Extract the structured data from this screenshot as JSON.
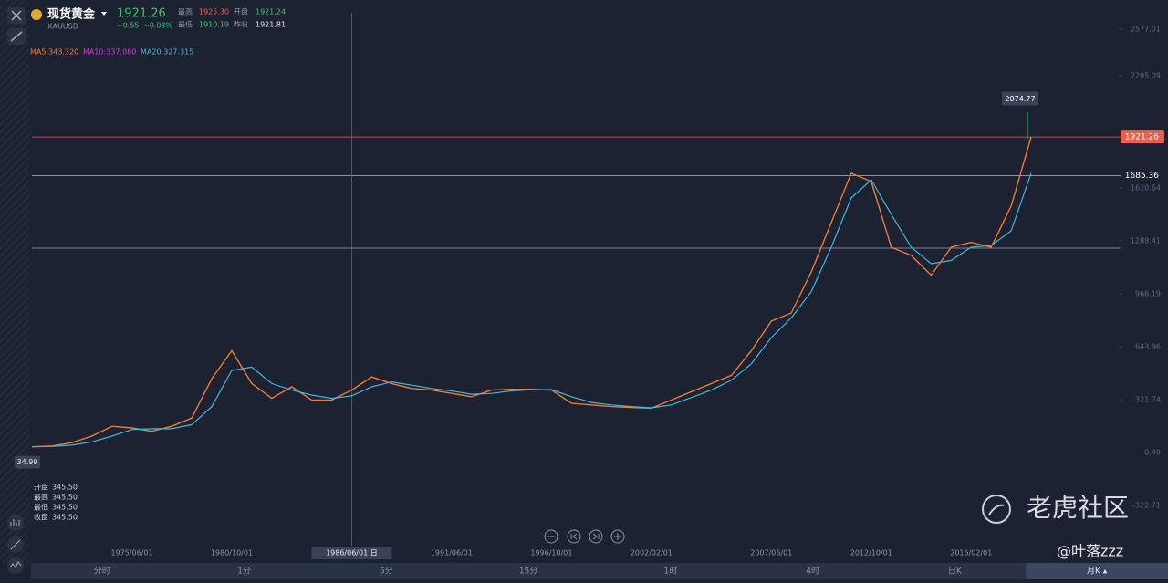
{
  "header": {
    "title": "现货黄金",
    "symbol": "XAUUSD",
    "price": "1921.26",
    "change": "−0.55",
    "change_pct": "−0.03%",
    "high_label": "最高",
    "high": "1925.30",
    "open_label": "开盘",
    "open": "1921.24",
    "low_label": "最低",
    "low": "1910.19",
    "prev_label": "昨收",
    "prev": "1921.81"
  },
  "ma_legend": [
    "MA5:343.320",
    "MA10:337.080",
    "MA20:327.315"
  ],
  "ohlc_panel": [
    [
      "开盘",
      "345.50"
    ],
    [
      "最高",
      "345.50"
    ],
    [
      "最低",
      "345.50"
    ],
    [
      "收盘",
      "345.50"
    ]
  ],
  "chart_data": {
    "type": "line",
    "categories": [
      null,
      null,
      null,
      null,
      null,
      "1975/06/01",
      null,
      null,
      null,
      null,
      "1980/10/01",
      null,
      null,
      null,
      null,
      null,
      null,
      null,
      null,
      null,
      null,
      "1991/06/01",
      null,
      null,
      null,
      null,
      "1996/10/01",
      null,
      null,
      null,
      null,
      "2002/02/01",
      null,
      null,
      null,
      null,
      null,
      "2007/06/01",
      null,
      null,
      null,
      null,
      "2012/10/01",
      null,
      null,
      null,
      null,
      "2016/02/01",
      null,
      null,
      null
    ],
    "series": [
      {
        "color": "#f07a30",
        "values": [
          35,
          40,
          60,
          100,
          160,
          150,
          130,
          160,
          210,
          450,
          620,
          420,
          330,
          400,
          320,
          320,
          380,
          460,
          420,
          390,
          380,
          360,
          340,
          380,
          385,
          385,
          380,
          300,
          290,
          280,
          275,
          270,
          320,
          370,
          420,
          470,
          620,
          800,
          850,
          1100,
          1400,
          1700,
          1650,
          1250,
          1200,
          1080,
          1250,
          1280,
          1250,
          1500,
          1921
        ]
      },
      {
        "color": "#3fb8d8",
        "values": [
          35,
          37,
          45,
          65,
          100,
          140,
          145,
          145,
          170,
          280,
          500,
          520,
          420,
          380,
          350,
          330,
          345,
          400,
          430,
          410,
          390,
          375,
          355,
          360,
          375,
          382,
          383,
          340,
          305,
          290,
          280,
          272,
          290,
          335,
          380,
          440,
          540,
          700,
          820,
          980,
          1250,
          1550,
          1660,
          1450,
          1250,
          1150,
          1170,
          1250,
          1260,
          1350,
          1700
        ]
      }
    ],
    "ylim": [
      -550,
      2644
    ],
    "yticks": [
      2577.01,
      2295.09,
      1610.64,
      1288.41,
      966.19,
      643.96,
      321.74,
      -0.49,
      -322.71
    ],
    "price_lines": [
      {
        "value": 1921.26,
        "color": "#e8604c"
      },
      {
        "value": 1685.36,
        "color": "#9aa3b5"
      }
    ],
    "high_label": 2074.77,
    "low_label": 34.99,
    "crosshair": "1986/06/01 日"
  },
  "tabs": [
    "分时",
    "1分",
    "5分",
    "15分",
    "1时",
    "4时",
    "日K",
    "月K ▴"
  ],
  "watermark": "老虎社区",
  "author": "@叶落zzz"
}
